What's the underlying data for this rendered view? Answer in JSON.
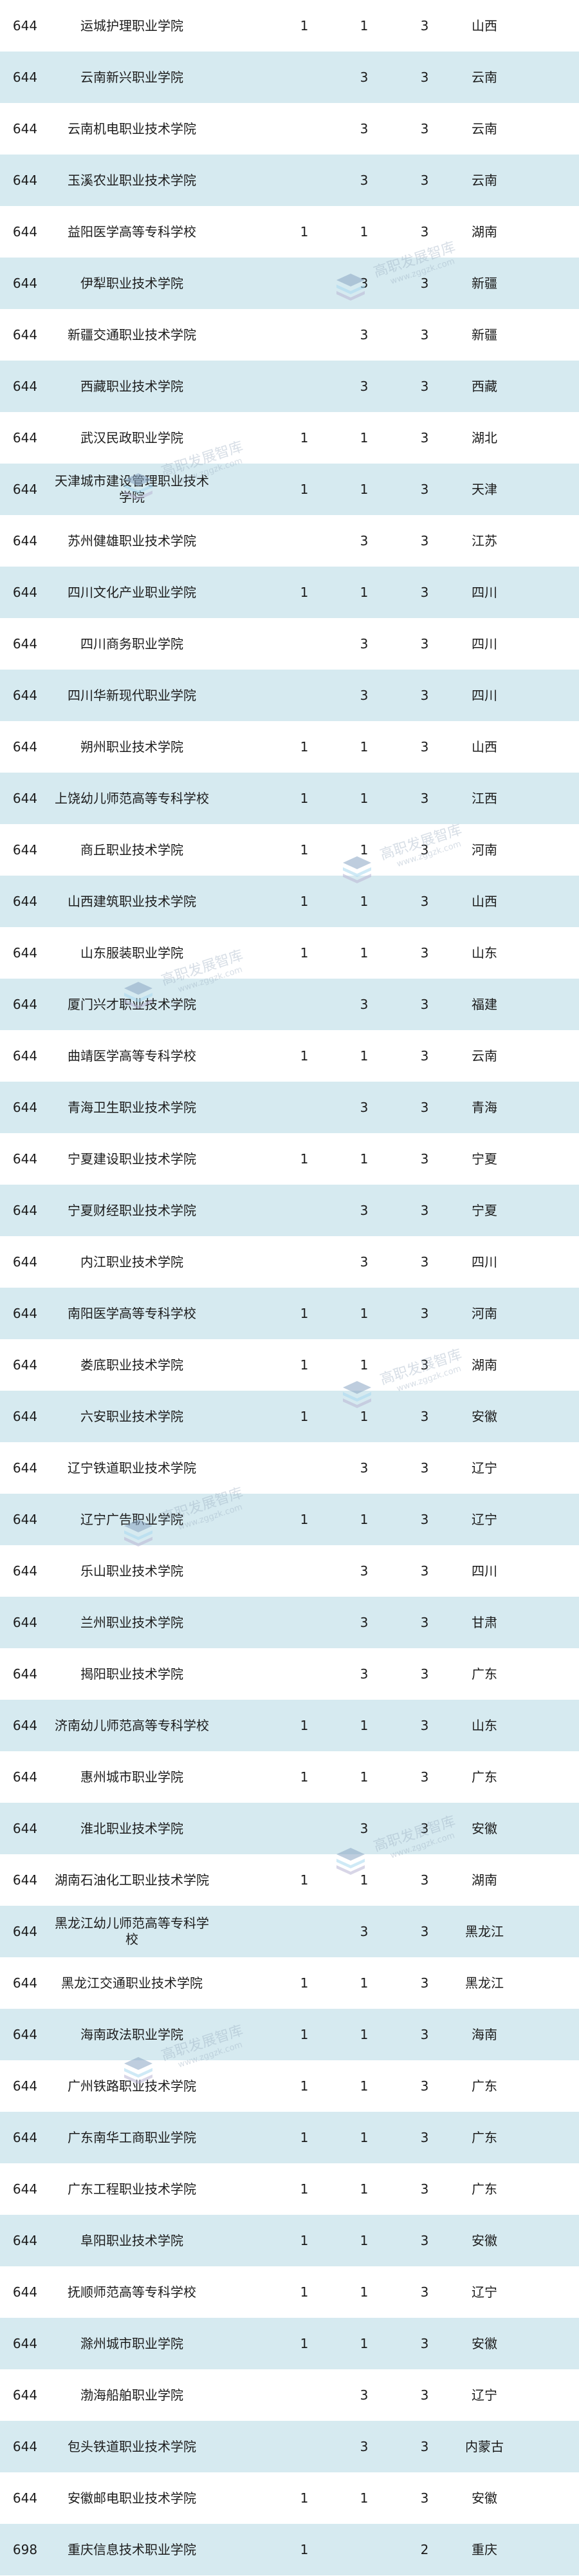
{
  "colors": {
    "stripe": "#d6eaf0",
    "text": "#1c1c1c"
  },
  "watermark": {
    "title": "高职发展智库",
    "url": "www.zggzk.com"
  },
  "rows": [
    {
      "score": "644",
      "name": "运城护理职业学院",
      "a": "1",
      "b": "1",
      "c": "3",
      "province": "山西"
    },
    {
      "score": "644",
      "name": "云南新兴职业学院",
      "a": "",
      "b": "3",
      "c": "3",
      "province": "云南"
    },
    {
      "score": "644",
      "name": "云南机电职业技术学院",
      "a": "",
      "b": "3",
      "c": "3",
      "province": "云南"
    },
    {
      "score": "644",
      "name": "玉溪农业职业技术学院",
      "a": "",
      "b": "3",
      "c": "3",
      "province": "云南"
    },
    {
      "score": "644",
      "name": "益阳医学高等专科学校",
      "a": "1",
      "b": "1",
      "c": "3",
      "province": "湖南"
    },
    {
      "score": "644",
      "name": "伊犁职业技术学院",
      "a": "",
      "b": "3",
      "c": "3",
      "province": "新疆"
    },
    {
      "score": "644",
      "name": "新疆交通职业技术学院",
      "a": "",
      "b": "3",
      "c": "3",
      "province": "新疆"
    },
    {
      "score": "644",
      "name": "西藏职业技术学院",
      "a": "",
      "b": "3",
      "c": "3",
      "province": "西藏"
    },
    {
      "score": "644",
      "name": "武汉民政职业学院",
      "a": "1",
      "b": "1",
      "c": "3",
      "province": "湖北"
    },
    {
      "score": "644",
      "name": "天津城市建设管理职业技术学院",
      "a": "1",
      "b": "1",
      "c": "3",
      "province": "天津"
    },
    {
      "score": "644",
      "name": "苏州健雄职业技术学院",
      "a": "",
      "b": "3",
      "c": "3",
      "province": "江苏"
    },
    {
      "score": "644",
      "name": "四川文化产业职业学院",
      "a": "1",
      "b": "1",
      "c": "3",
      "province": "四川"
    },
    {
      "score": "644",
      "name": "四川商务职业学院",
      "a": "",
      "b": "3",
      "c": "3",
      "province": "四川"
    },
    {
      "score": "644",
      "name": "四川华新现代职业学院",
      "a": "",
      "b": "3",
      "c": "3",
      "province": "四川"
    },
    {
      "score": "644",
      "name": "朔州职业技术学院",
      "a": "1",
      "b": "1",
      "c": "3",
      "province": "山西"
    },
    {
      "score": "644",
      "name": "上饶幼儿师范高等专科学校",
      "a": "1",
      "b": "1",
      "c": "3",
      "province": "江西"
    },
    {
      "score": "644",
      "name": "商丘职业技术学院",
      "a": "1",
      "b": "1",
      "c": "3",
      "province": "河南"
    },
    {
      "score": "644",
      "name": "山西建筑职业技术学院",
      "a": "1",
      "b": "1",
      "c": "3",
      "province": "山西"
    },
    {
      "score": "644",
      "name": "山东服装职业学院",
      "a": "1",
      "b": "1",
      "c": "3",
      "province": "山东"
    },
    {
      "score": "644",
      "name": "厦门兴才职业技术学院",
      "a": "",
      "b": "3",
      "c": "3",
      "province": "福建"
    },
    {
      "score": "644",
      "name": "曲靖医学高等专科学校",
      "a": "1",
      "b": "1",
      "c": "3",
      "province": "云南"
    },
    {
      "score": "644",
      "name": "青海卫生职业技术学院",
      "a": "",
      "b": "3",
      "c": "3",
      "province": "青海"
    },
    {
      "score": "644",
      "name": "宁夏建设职业技术学院",
      "a": "1",
      "b": "1",
      "c": "3",
      "province": "宁夏"
    },
    {
      "score": "644",
      "name": "宁夏财经职业技术学院",
      "a": "",
      "b": "3",
      "c": "3",
      "province": "宁夏"
    },
    {
      "score": "644",
      "name": "内江职业技术学院",
      "a": "",
      "b": "3",
      "c": "3",
      "province": "四川"
    },
    {
      "score": "644",
      "name": "南阳医学高等专科学校",
      "a": "1",
      "b": "1",
      "c": "3",
      "province": "河南"
    },
    {
      "score": "644",
      "name": "娄底职业技术学院",
      "a": "1",
      "b": "1",
      "c": "3",
      "province": "湖南"
    },
    {
      "score": "644",
      "name": "六安职业技术学院",
      "a": "1",
      "b": "1",
      "c": "3",
      "province": "安徽"
    },
    {
      "score": "644",
      "name": "辽宁铁道职业技术学院",
      "a": "",
      "b": "3",
      "c": "3",
      "province": "辽宁"
    },
    {
      "score": "644",
      "name": "辽宁广告职业学院",
      "a": "1",
      "b": "1",
      "c": "3",
      "province": "辽宁"
    },
    {
      "score": "644",
      "name": "乐山职业技术学院",
      "a": "",
      "b": "3",
      "c": "3",
      "province": "四川"
    },
    {
      "score": "644",
      "name": "兰州职业技术学院",
      "a": "",
      "b": "3",
      "c": "3",
      "province": "甘肃"
    },
    {
      "score": "644",
      "name": "揭阳职业技术学院",
      "a": "",
      "b": "3",
      "c": "3",
      "province": "广东"
    },
    {
      "score": "644",
      "name": "济南幼儿师范高等专科学校",
      "a": "1",
      "b": "1",
      "c": "3",
      "province": "山东"
    },
    {
      "score": "644",
      "name": "惠州城市职业学院",
      "a": "1",
      "b": "1",
      "c": "3",
      "province": "广东"
    },
    {
      "score": "644",
      "name": "淮北职业技术学院",
      "a": "",
      "b": "3",
      "c": "3",
      "province": "安徽"
    },
    {
      "score": "644",
      "name": "湖南石油化工职业技术学院",
      "a": "1",
      "b": "1",
      "c": "3",
      "province": "湖南"
    },
    {
      "score": "644",
      "name": "黑龙江幼儿师范高等专科学校",
      "a": "",
      "b": "3",
      "c": "3",
      "province": "黑龙江"
    },
    {
      "score": "644",
      "name": "黑龙江交通职业技术学院",
      "a": "1",
      "b": "1",
      "c": "3",
      "province": "黑龙江"
    },
    {
      "score": "644",
      "name": "海南政法职业学院",
      "a": "1",
      "b": "1",
      "c": "3",
      "province": "海南"
    },
    {
      "score": "644",
      "name": "广州铁路职业技术学院",
      "a": "1",
      "b": "1",
      "c": "3",
      "province": "广东"
    },
    {
      "score": "644",
      "name": "广东南华工商职业学院",
      "a": "1",
      "b": "1",
      "c": "3",
      "province": "广东"
    },
    {
      "score": "644",
      "name": "广东工程职业技术学院",
      "a": "1",
      "b": "1",
      "c": "3",
      "province": "广东"
    },
    {
      "score": "644",
      "name": "阜阳职业技术学院",
      "a": "1",
      "b": "1",
      "c": "3",
      "province": "安徽"
    },
    {
      "score": "644",
      "name": "抚顺师范高等专科学校",
      "a": "1",
      "b": "1",
      "c": "3",
      "province": "辽宁"
    },
    {
      "score": "644",
      "name": "滁州城市职业学院",
      "a": "1",
      "b": "1",
      "c": "3",
      "province": "安徽"
    },
    {
      "score": "644",
      "name": "渤海船舶职业学院",
      "a": "",
      "b": "3",
      "c": "3",
      "province": "辽宁"
    },
    {
      "score": "644",
      "name": "包头铁道职业技术学院",
      "a": "",
      "b": "3",
      "c": "3",
      "province": "内蒙古"
    },
    {
      "score": "644",
      "name": "安徽邮电职业技术学院",
      "a": "1",
      "b": "1",
      "c": "3",
      "province": "安徽"
    },
    {
      "score": "698",
      "name": "重庆信息技术职业学院",
      "a": "1",
      "b": "",
      "c": "2",
      "province": "重庆"
    }
  ]
}
